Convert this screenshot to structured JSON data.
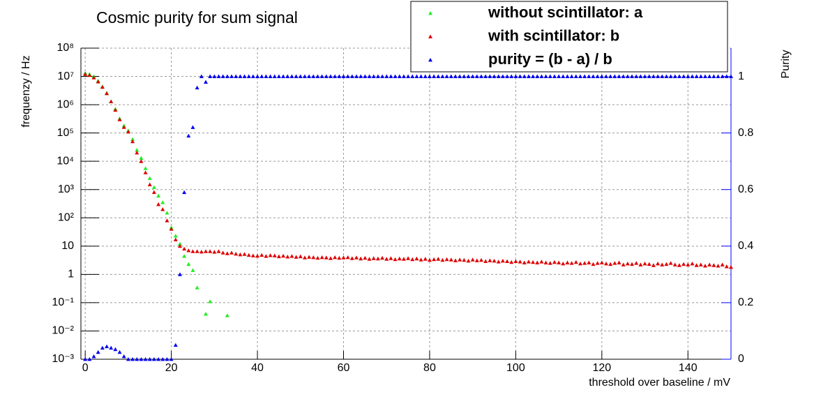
{
  "chart_data": {
    "type": "scatter",
    "title": "Cosmic purity for sum signal",
    "x_label": "threshold over baseline / mV",
    "y_label": "frequenzy / Hz",
    "y2_label": "Purity",
    "y_scale": "log",
    "grid": true,
    "legend_position": "top-right",
    "xlim": [
      -1,
      150
    ],
    "xticks": [
      0,
      20,
      40,
      60,
      80,
      100,
      120,
      140
    ],
    "ylim": [
      0.001,
      100000000
    ],
    "yticks": [
      {
        "value": 0.001,
        "label": "10⁻³"
      },
      {
        "value": 0.01,
        "label": "10⁻²"
      },
      {
        "value": 0.1,
        "label": "10⁻¹"
      },
      1,
      10,
      {
        "value": 100,
        "label": "10²"
      },
      {
        "value": 1000,
        "label": "10³"
      },
      {
        "value": 10000,
        "label": "10⁴"
      },
      {
        "value": 100000,
        "label": "10⁵"
      },
      {
        "value": 1000000,
        "label": "10⁶"
      },
      {
        "value": 10000000,
        "label": "10⁷"
      },
      {
        "value": 100000000,
        "label": "10⁸"
      }
    ],
    "y2lim": [
      0,
      1.1
    ],
    "y2ticks": [
      0,
      0.2,
      0.4,
      0.6,
      0.8,
      1
    ],
    "y2_color": "#0000ff",
    "x": [
      0,
      1,
      2,
      3,
      4,
      5,
      6,
      7,
      8,
      9,
      10,
      11,
      12,
      13,
      14,
      15,
      16,
      17,
      18,
      19,
      20,
      21,
      22,
      23,
      24,
      25,
      26,
      27,
      28,
      29,
      30,
      31,
      32,
      33,
      34,
      35,
      36,
      37,
      38,
      39,
      40,
      41,
      42,
      43,
      44,
      45,
      46,
      47,
      48,
      49,
      50,
      51,
      52,
      53,
      54,
      55,
      56,
      57,
      58,
      59,
      60,
      61,
      62,
      63,
      64,
      65,
      66,
      67,
      68,
      69,
      70,
      71,
      72,
      73,
      74,
      75,
      76,
      77,
      78,
      79,
      80,
      81,
      82,
      83,
      84,
      85,
      86,
      87,
      88,
      89,
      90,
      91,
      92,
      93,
      94,
      95,
      96,
      97,
      98,
      99,
      100,
      101,
      102,
      103,
      104,
      105,
      106,
      107,
      108,
      109,
      110,
      111,
      112,
      113,
      114,
      115,
      116,
      117,
      118,
      119,
      120,
      121,
      122,
      123,
      124,
      125,
      126,
      127,
      128,
      129,
      130,
      131,
      132,
      133,
      134,
      135,
      136,
      137,
      138,
      139,
      140,
      141,
      142,
      143,
      144,
      145,
      146,
      147,
      148,
      149,
      150
    ],
    "series": [
      {
        "name": "without scintillator: a",
        "color": "#22ee22",
        "values": [
          13000000,
          12000000,
          10000000,
          7000000,
          4400000,
          2600000,
          1300000,
          700000,
          320000,
          180000,
          120000,
          60000,
          25000,
          13000,
          5600,
          2500,
          1200,
          600,
          350,
          150,
          45,
          23,
          12,
          4.4,
          2.3,
          1.4,
          0.34,
          null,
          0.04,
          0.11,
          null,
          null,
          null,
          0.035,
          null,
          null,
          null,
          null,
          null,
          null,
          null,
          null,
          null,
          null,
          null,
          null,
          null,
          null,
          null,
          null,
          null,
          null,
          null,
          null,
          null,
          null,
          null,
          null,
          null,
          null,
          null,
          null,
          null,
          null,
          null,
          null,
          null,
          null,
          null,
          null,
          null,
          null,
          null,
          null,
          null,
          null,
          null,
          null,
          null,
          null,
          null,
          null,
          null,
          null,
          null,
          null,
          null,
          null,
          null,
          null,
          null,
          null,
          null,
          null,
          null,
          null,
          null,
          null,
          null,
          null,
          null,
          null,
          null,
          null,
          null,
          null,
          null,
          null,
          null,
          null,
          null,
          null,
          null,
          null,
          null,
          null,
          null,
          null,
          null,
          null,
          null,
          null,
          null,
          null,
          null,
          null,
          null,
          null,
          null,
          null,
          null,
          null,
          null,
          null,
          null,
          null,
          null,
          null,
          null,
          null,
          null,
          null,
          null,
          null,
          null,
          null,
          null,
          null,
          null,
          null,
          null
        ]
      },
      {
        "name": "with scintillator: b",
        "color": "#dd0000",
        "values": [
          12000000,
          11000000,
          9000000,
          6500000,
          4200000,
          2500000,
          1300000,
          650000,
          300000,
          160000,
          110000,
          50000,
          20000,
          10000,
          4000,
          1500,
          800,
          300,
          200,
          80,
          40,
          17,
          10,
          8,
          7,
          6.5,
          6.5,
          6.3,
          6.5,
          6.5,
          6.2,
          6.5,
          5.8,
          5.5,
          5.8,
          5.3,
          5.0,
          5.2,
          4.8,
          4.6,
          4.5,
          4.8,
          4.4,
          4.7,
          4.6,
          4.3,
          4.5,
          4.2,
          4.4,
          4.1,
          4.3,
          3.9,
          4.1,
          4.0,
          3.8,
          4.0,
          3.9,
          3.7,
          4.0,
          3.8,
          3.9,
          4.0,
          3.7,
          3.9,
          3.6,
          3.8,
          3.5,
          3.7,
          3.6,
          3.8,
          3.5,
          3.7,
          3.4,
          3.6,
          3.5,
          3.7,
          3.4,
          3.6,
          3.3,
          3.5,
          3.2,
          3.4,
          3.5,
          3.2,
          3.4,
          3.3,
          3.1,
          3.3,
          3.2,
          3.0,
          3.3,
          3.1,
          3.2,
          2.9,
          3.1,
          3.0,
          2.8,
          3.0,
          2.9,
          2.7,
          2.9,
          2.8,
          2.6,
          2.8,
          2.7,
          2.6,
          2.8,
          2.6,
          2.5,
          2.7,
          2.6,
          2.4,
          2.6,
          2.5,
          2.7,
          2.4,
          2.5,
          2.6,
          2.3,
          2.5,
          2.6,
          2.4,
          2.3,
          2.5,
          2.6,
          2.2,
          2.4,
          2.3,
          2.5,
          2.2,
          2.4,
          2.3,
          2.1,
          2.4,
          2.2,
          2.3,
          2.5,
          2.2,
          2.1,
          2.3,
          2.2,
          2.4,
          2.1,
          2.2,
          2.0,
          2.2,
          2.1,
          2.0,
          2.2,
          1.9,
          1.8
        ]
      },
      {
        "name": "purity = (b - a) / b",
        "color": "#0000ee",
        "axis": "y2",
        "values": [
          0,
          0,
          0.01,
          0.025,
          0.04,
          0.045,
          0.04,
          0.035,
          0.025,
          0.01,
          0,
          0,
          0,
          0,
          0,
          0,
          0,
          0,
          0,
          0,
          0,
          0.05,
          0.3,
          0.59,
          0.79,
          0.82,
          0.96,
          1,
          0.98,
          1,
          1,
          1,
          1,
          1,
          1,
          1,
          1,
          1,
          1,
          1,
          1,
          1,
          1,
          1,
          1,
          1,
          1,
          1,
          1,
          1,
          1,
          1,
          1,
          1,
          1,
          1,
          1,
          1,
          1,
          1,
          1,
          1,
          1,
          1,
          1,
          1,
          1,
          1,
          1,
          1,
          1,
          1,
          1,
          1,
          1,
          1,
          1,
          1,
          1,
          1,
          1,
          1,
          1,
          1,
          1,
          1,
          1,
          1,
          1,
          1,
          1,
          1,
          1,
          1,
          1,
          1,
          1,
          1,
          1,
          1,
          1,
          1,
          1,
          1,
          1,
          1,
          1,
          1,
          1,
          1,
          1,
          1,
          1,
          1,
          1,
          1,
          1,
          1,
          1,
          1,
          1,
          1,
          1,
          1,
          1,
          1,
          1,
          1,
          1,
          1,
          1,
          1,
          1,
          1,
          1,
          1,
          1,
          1,
          1,
          1,
          1,
          1,
          1,
          1,
          1,
          1,
          1,
          1,
          1,
          1,
          1
        ]
      }
    ]
  }
}
